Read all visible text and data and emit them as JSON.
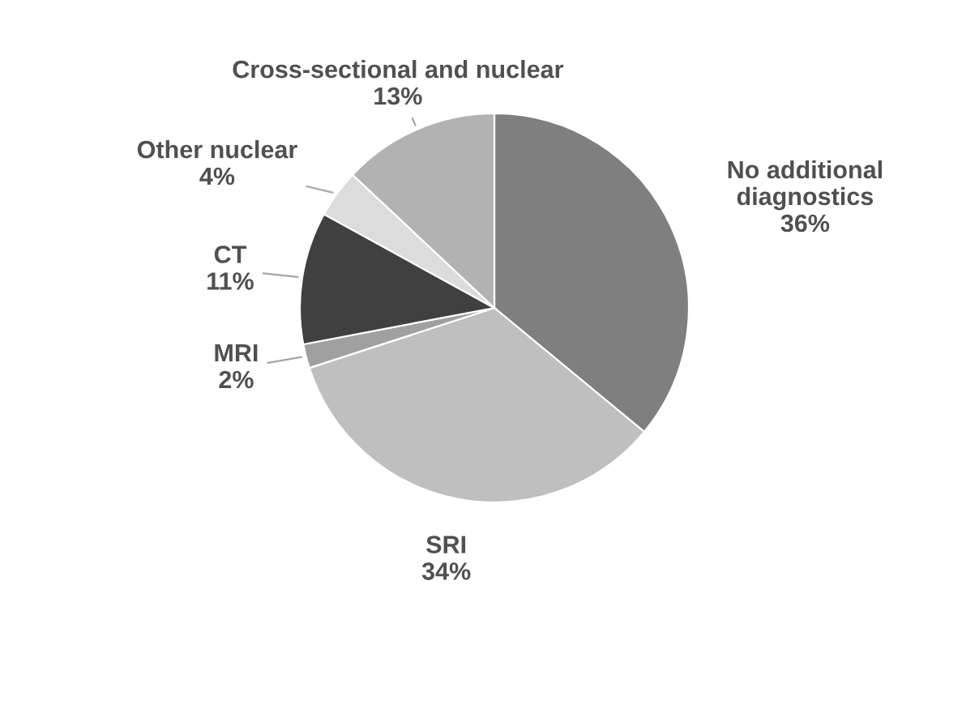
{
  "chart_data": {
    "type": "pie",
    "categories": [
      "No additional diagnostics",
      "SRI",
      "MRI",
      "CT",
      "Other nuclear",
      "Cross-sectional and nuclear"
    ],
    "values": [
      36,
      34,
      2,
      11,
      4,
      13
    ],
    "value_labels": [
      "36%",
      "34%",
      "2%",
      "11%",
      "4%",
      "13%"
    ],
    "colors": [
      "#7f7f80",
      "#bfbfbf",
      "#a0a0a0",
      "#404040",
      "#dcdcdc",
      "#b2b2b2"
    ]
  }
}
